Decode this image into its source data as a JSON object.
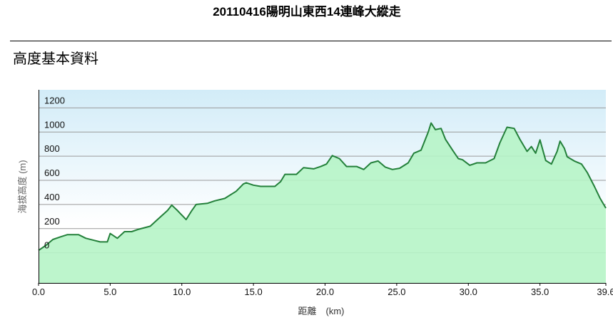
{
  "chart_data": {
    "type": "area",
    "title": "20110416陽明山東西14連峰大縱走",
    "subtitle": "高度基本資料",
    "x_label": "距離　(km)",
    "y_label": "海拔高度 (m)",
    "xlim": [
      0,
      39.6
    ],
    "ylim": [
      -250,
      1350
    ],
    "xticks": [
      {
        "value": 0,
        "label": "0.0"
      },
      {
        "value": 5,
        "label": "5.0"
      },
      {
        "value": 10,
        "label": "10.0"
      },
      {
        "value": 15,
        "label": "15.0"
      },
      {
        "value": 20,
        "label": "20.0"
      },
      {
        "value": 25,
        "label": "25.0"
      },
      {
        "value": 30,
        "label": "30.0"
      },
      {
        "value": 35,
        "label": "35.0"
      },
      39.6
    ],
    "yticks": [
      0,
      200,
      400,
      600,
      800,
      1000,
      1200
    ],
    "grid": true,
    "color": "#23803a",
    "fill_color": "#b6f4c6",
    "x": [
      0,
      0.5,
      1.0,
      1.5,
      2.0,
      2.8,
      3.3,
      4.3,
      4.8,
      5.0,
      5.5,
      6.0,
      6.5,
      7.0,
      7.8,
      8.3,
      9.0,
      9.3,
      9.7,
      10.3,
      10.7,
      11.0,
      11.8,
      12.3,
      13.0,
      13.8,
      14.3,
      14.5,
      15.0,
      15.5,
      16.5,
      16.9,
      17.2,
      18.0,
      18.5,
      19.2,
      19.7,
      20.1,
      20.5,
      21.0,
      21.5,
      22.2,
      22.7,
      23.2,
      23.7,
      24.2,
      24.7,
      25.2,
      25.8,
      26.2,
      26.7,
      27.2,
      27.4,
      27.7,
      28.1,
      28.4,
      28.9,
      29.3,
      29.6,
      30.1,
      30.6,
      31.2,
      31.8,
      32.2,
      32.7,
      33.2,
      33.6,
      34.1,
      34.4,
      34.7,
      35.0,
      35.4,
      35.8,
      36.2,
      36.4,
      36.7,
      36.9,
      37.4,
      37.9,
      38.3,
      38.8,
      39.2,
      39.6
    ],
    "values": [
      20,
      60,
      110,
      130,
      150,
      150,
      120,
      90,
      90,
      160,
      120,
      175,
      175,
      195,
      220,
      275,
      350,
      395,
      350,
      275,
      350,
      400,
      410,
      430,
      450,
      510,
      570,
      580,
      560,
      550,
      550,
      590,
      650,
      650,
      705,
      695,
      715,
      735,
      805,
      780,
      715,
      715,
      690,
      745,
      760,
      710,
      690,
      700,
      745,
      825,
      850,
      1000,
      1075,
      1020,
      1030,
      940,
      850,
      780,
      770,
      725,
      745,
      745,
      780,
      910,
      1040,
      1030,
      940,
      840,
      880,
      825,
      935,
      765,
      735,
      840,
      925,
      865,
      795,
      760,
      735,
      665,
      550,
      450,
      370
    ]
  }
}
